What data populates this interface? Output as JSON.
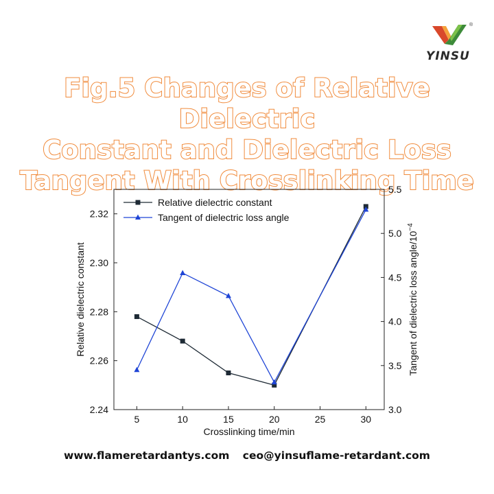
{
  "logo": {
    "text": "YINSU",
    "mark": "®"
  },
  "title": {
    "lines": [
      "Fig.5 Changes of Relative Dielectric",
      "Constant and Dielectric Loss",
      "Tangent With Crosslinking Time"
    ]
  },
  "footer": {
    "website": "www.flameretardantys.com",
    "email": "ceo@yinsuflame-retardant.com"
  },
  "chart_data": {
    "type": "line",
    "x": [
      5,
      10,
      15,
      20,
      30
    ],
    "xlabel": "Crosslinking time/min",
    "xlim": [
      2.5,
      32
    ],
    "xticks": [
      5,
      10,
      15,
      20,
      25,
      30
    ],
    "ylabel_left": "Relative dielectric constant",
    "ylim_left": [
      2.24,
      2.33
    ],
    "yticks_left": [
      "2.24",
      "2.26",
      "2.28",
      "2.30",
      "2.32"
    ],
    "ylabel_right": "Tangent of dielectric loss angle/10",
    "ylabel_right_exponent": "−4",
    "ylim_right": [
      3.0,
      5.5
    ],
    "yticks_right": [
      "3.0",
      "3.5",
      "4.0",
      "4.5",
      "5.0",
      "5.5"
    ],
    "legend_position": "top-left",
    "grid": false,
    "series": [
      {
        "name": "Relative dielectric constant",
        "axis": "left",
        "marker": "square",
        "color": "#1e2a35",
        "values": [
          2.278,
          2.268,
          2.255,
          2.25,
          2.323
        ]
      },
      {
        "name": "Tangent of dielectric loss angle",
        "axis": "right",
        "marker": "triangle",
        "color": "#1f45d6",
        "values": [
          3.45,
          4.55,
          4.29,
          3.31,
          5.27
        ]
      }
    ]
  }
}
